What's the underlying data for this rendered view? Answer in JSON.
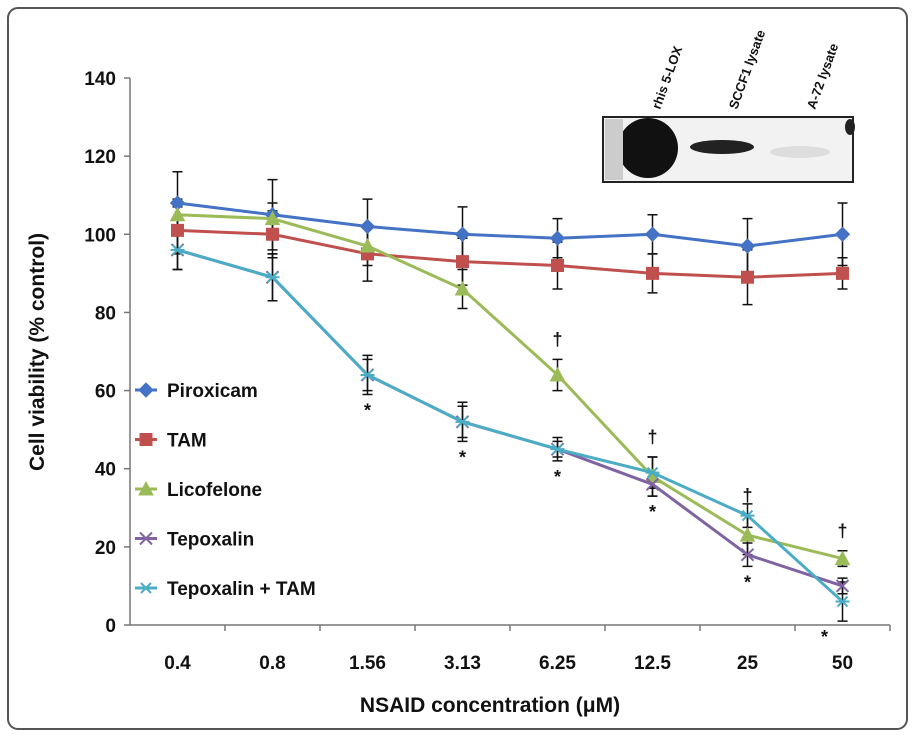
{
  "chart_data": {
    "type": "line",
    "xlabel": "NSAID concentration (μM)",
    "ylabel": "Cell viability (% control)",
    "categories": [
      "0.4",
      "0.8",
      "1.56",
      "3.13",
      "6.25",
      "12.5",
      "25",
      "50"
    ],
    "ylim": [
      0,
      140
    ],
    "yticks": [
      0,
      20,
      40,
      60,
      80,
      100,
      120,
      140
    ],
    "legend": "left",
    "series": [
      {
        "name": "Piroxicam",
        "color": "#4472c4",
        "marker": "diamond",
        "values": [
          108,
          105,
          102,
          100,
          99,
          100,
          97,
          100
        ],
        "errors": [
          8,
          9,
          7,
          7,
          5,
          5,
          7,
          8
        ]
      },
      {
        "name": "TAM",
        "color": "#c0504d",
        "marker": "square",
        "values": [
          101,
          100,
          95,
          93,
          92,
          90,
          89,
          90
        ],
        "errors": [
          6,
          6,
          7,
          6,
          6,
          5,
          7,
          4
        ]
      },
      {
        "name": "Licofelone",
        "color": "#9bbb59",
        "marker": "triangle",
        "values": [
          105,
          104,
          97,
          86,
          64,
          38,
          23,
          17
        ],
        "errors": [
          4,
          4,
          5,
          5,
          4,
          5,
          5,
          2
        ]
      },
      {
        "name": "Tepoxalin",
        "color": "#8064a2",
        "marker": "x",
        "values": [
          96,
          89,
          64,
          52,
          45,
          36,
          18,
          10
        ],
        "errors": [
          5,
          6,
          4,
          4,
          2,
          3,
          3,
          2
        ]
      },
      {
        "name": "Tepoxalin + TAM",
        "color": "#4bacc6",
        "marker": "star",
        "values": [
          96,
          89,
          64,
          52,
          45,
          39,
          28,
          6
        ],
        "errors": [
          5,
          6,
          5,
          5,
          3,
          4,
          3,
          5
        ]
      }
    ],
    "annotations": [
      {
        "text": "*",
        "category": "1.56",
        "series": "Tepoxalin"
      },
      {
        "text": "*",
        "category": "3.13",
        "series": "Tepoxalin"
      },
      {
        "text": "*",
        "category": "6.25",
        "series": "Tepoxalin"
      },
      {
        "text": "*",
        "category": "12.5",
        "series": "Tepoxalin"
      },
      {
        "text": "*",
        "category": "25",
        "series": "Tepoxalin"
      },
      {
        "text": "*",
        "category": "50",
        "series": "Tepoxalin"
      },
      {
        "text": "†",
        "category": "6.25",
        "series": "Licofelone"
      },
      {
        "text": "†",
        "category": "12.5",
        "series": "Licofelone"
      },
      {
        "text": "†",
        "category": "25",
        "series": "Licofelone"
      },
      {
        "text": "†",
        "category": "50",
        "series": "Licofelone"
      }
    ],
    "inset": {
      "lanes": [
        "rhis 5-LOX",
        "SCCF1 lysate",
        "A-72 lysate"
      ]
    }
  }
}
